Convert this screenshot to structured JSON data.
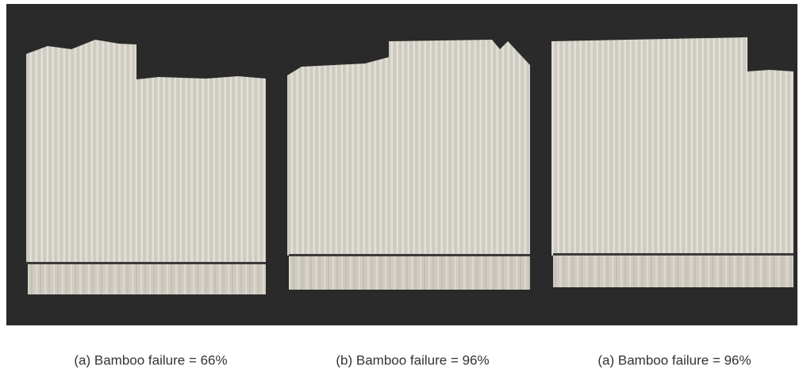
{
  "panels": [
    {
      "caption": "(a) Bamboo failure = 66%"
    },
    {
      "caption": "(b) Bamboo failure = 96%"
    },
    {
      "caption": "(a) Bamboo failure = 96%"
    }
  ]
}
